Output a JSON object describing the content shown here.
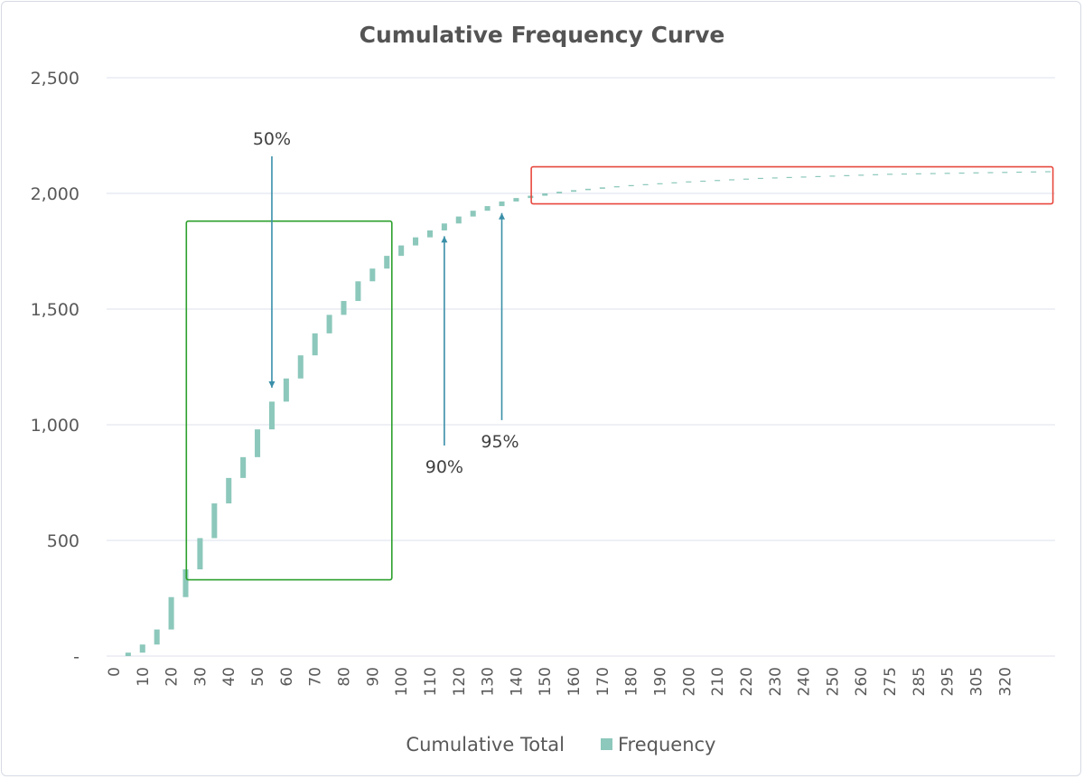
{
  "chart_data": {
    "type": "bar",
    "title": "Cumulative Frequency Curve",
    "xlabel": "",
    "ylabel": "",
    "ylim": [
      0,
      2500
    ],
    "y_ticks": [
      {
        "value": 0,
        "label": "-"
      },
      {
        "value": 500,
        "label": "500"
      },
      {
        "value": 1000,
        "label": "1,000"
      },
      {
        "value": 1500,
        "label": "1,500"
      },
      {
        "value": 2000,
        "label": "2,000"
      },
      {
        "value": 2500,
        "label": "2,500"
      }
    ],
    "grid": true,
    "legend_position": "bottom",
    "stacked": true,
    "categories": [
      "0",
      "5",
      "10",
      "15",
      "20",
      "25",
      "30",
      "35",
      "40",
      "45",
      "50",
      "55",
      "60",
      "65",
      "70",
      "75",
      "80",
      "85",
      "90",
      "95",
      "100",
      "105",
      "110",
      "115",
      "120",
      "125",
      "130",
      "135",
      "140",
      "145",
      "150",
      "155",
      "160",
      "165",
      "170",
      "175",
      "180",
      "185",
      "190",
      "195",
      "200",
      "205",
      "210",
      "215",
      "220",
      "225",
      "230",
      "235",
      "240",
      "245",
      "250",
      "255",
      "260",
      "265",
      "270",
      "275",
      "280",
      "285",
      "290",
      "295",
      "300",
      "305",
      "310",
      "315",
      "320",
      "325"
    ],
    "x_tick_labels": [
      "0",
      "10",
      "20",
      "30",
      "40",
      "50",
      "60",
      "70",
      "80",
      "90",
      "100",
      "110",
      "120",
      "130",
      "140",
      "150",
      "160",
      "170",
      "180",
      "190",
      "200",
      "210",
      "220",
      "230",
      "240",
      "250",
      "260",
      "275",
      "285",
      "295",
      "305",
      "320"
    ],
    "series": [
      {
        "name": "Cumulative Total",
        "color": "none",
        "values": [
          0,
          0,
          15,
          50,
          115,
          255,
          375,
          510,
          660,
          770,
          860,
          980,
          1100,
          1200,
          1300,
          1395,
          1475,
          1535,
          1620,
          1675,
          1730,
          1775,
          1810,
          1840,
          1870,
          1900,
          1925,
          1945,
          1965,
          1980,
          1990,
          2000,
          2007,
          2014,
          2020,
          2026,
          2031,
          2036,
          2040,
          2044,
          2048,
          2052,
          2055,
          2058,
          2061,
          2064,
          2067,
          2069,
          2071,
          2073,
          2075,
          2077,
          2079,
          2081,
          2083,
          2085,
          2086,
          2087,
          2088,
          2089,
          2090,
          2091,
          2092,
          2093,
          2094,
          2095
        ]
      },
      {
        "name": "Frequency",
        "color": "#8cc8bb",
        "values": [
          0,
          15,
          35,
          65,
          140,
          120,
          135,
          150,
          110,
          90,
          120,
          120,
          100,
          100,
          95,
          80,
          60,
          85,
          55,
          55,
          45,
          35,
          30,
          30,
          30,
          25,
          20,
          20,
          15,
          10,
          10,
          7,
          7,
          6,
          6,
          5,
          5,
          4,
          4,
          4,
          4,
          3,
          3,
          3,
          3,
          3,
          2,
          2,
          2,
          2,
          2,
          2,
          2,
          2,
          2,
          1,
          1,
          1,
          1,
          1,
          1,
          1,
          1,
          1,
          1,
          1
        ]
      }
    ],
    "annotations": [
      {
        "text": "50%",
        "x_category": "55",
        "direction": "down",
        "tip_value": 1160,
        "tail_value": 2160
      },
      {
        "text": "90%",
        "x_category": "115",
        "direction": "up",
        "tip_value": 1815,
        "tail_value": 910
      },
      {
        "text": "95%",
        "x_category": "135",
        "direction": "up",
        "tip_value": 1915,
        "tail_value": 1020
      }
    ],
    "highlight_boxes": [
      {
        "color": "#2ca02c",
        "x_from": "25",
        "x_to": "95",
        "y_from": 330,
        "y_to": 1880
      },
      {
        "color": "#e8493f",
        "x_from": "145",
        "x_to": "325",
        "y_from": 1955,
        "y_to": 2115
      }
    ]
  },
  "colors": {
    "frequency": "#8cc8bb",
    "arrow": "#3a8fa8",
    "grid": "#e3e6f0",
    "green_box": "#2ca02c",
    "red_box": "#e8493f"
  }
}
